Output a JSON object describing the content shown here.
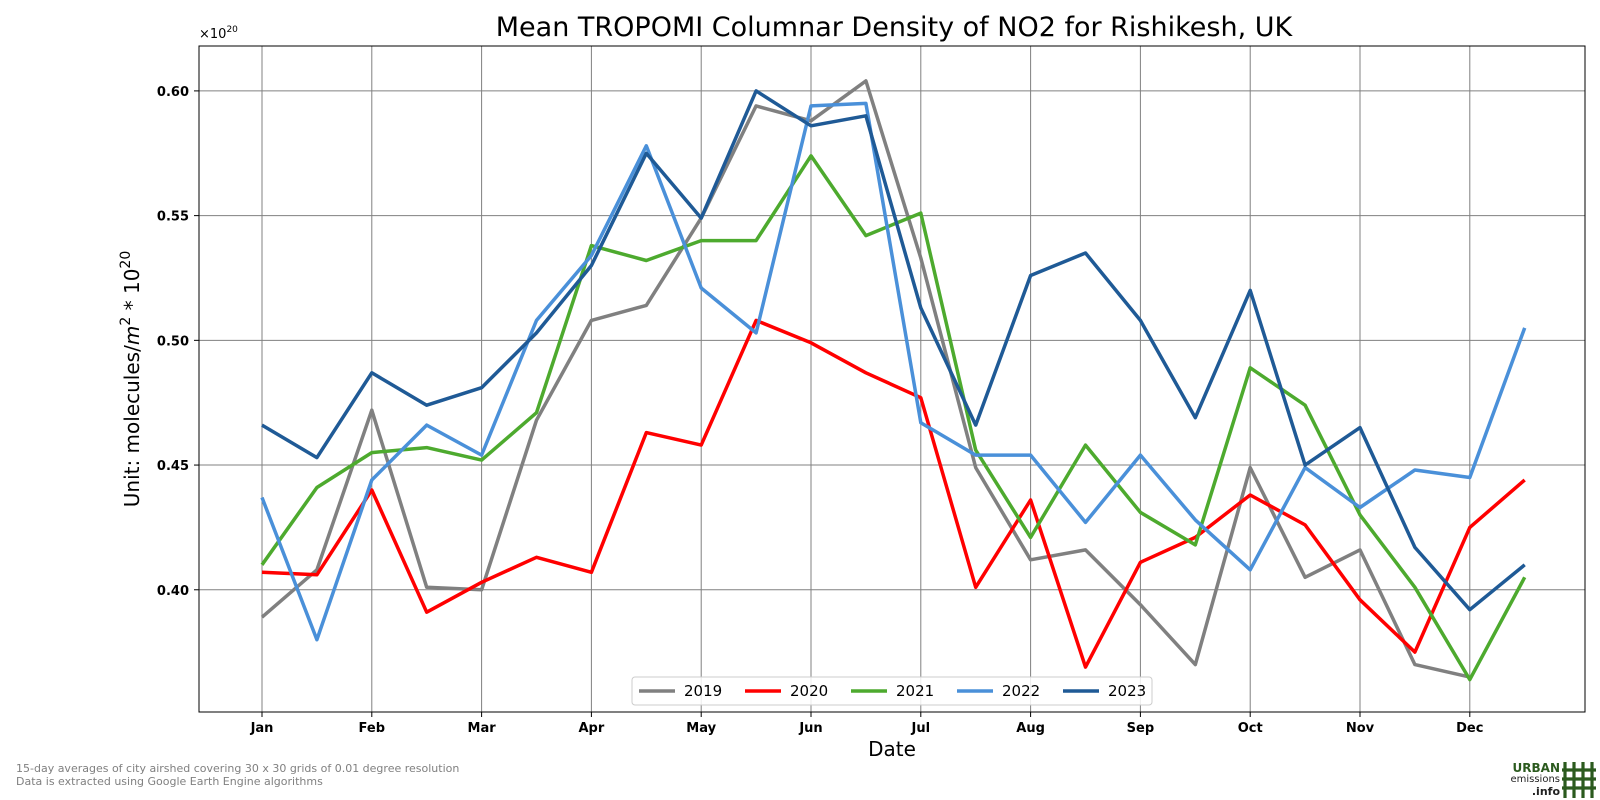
{
  "chart_data": {
    "type": "line",
    "title": "Mean TROPOMI Columnar Density of NO2 for Rishikesh, UK",
    "xlabel": "Date",
    "ylabel_prefix": "Unit: molecules/",
    "ylabel_unit_base": "m",
    "ylabel_unit_exp": "2",
    "ylabel_mult": " * 10",
    "ylabel_mult_exp": "20",
    "offset_base": "×10",
    "offset_exp": "20",
    "categories": [
      "Jan",
      "",
      "Feb",
      "",
      "Mar",
      "",
      "Apr",
      "",
      "May",
      "",
      "Jun",
      "",
      "Jul",
      "",
      "Aug",
      "",
      "Sep",
      "",
      "Oct",
      "",
      "Nov",
      "",
      "Dec",
      ""
    ],
    "month_ticks": [
      "Jan",
      "Feb",
      "Mar",
      "Apr",
      "May",
      "Jun",
      "Jul",
      "Aug",
      "Sep",
      "Oct",
      "Nov",
      "Dec"
    ],
    "yticks": [
      "0.40",
      "0.45",
      "0.50",
      "0.55",
      "0.60"
    ],
    "ylim": [
      0.351,
      0.618
    ],
    "grid": true,
    "legend_position": "bottom-center",
    "series": [
      {
        "name": "2019",
        "color": "#808080",
        "values": [
          0.389,
          0.408,
          0.472,
          0.401,
          0.4,
          0.468,
          0.508,
          0.514,
          0.549,
          0.594,
          0.588,
          0.604,
          0.533,
          0.449,
          0.412,
          0.416,
          0.394,
          0.37,
          0.449,
          0.405,
          0.416,
          0.37,
          0.365,
          null
        ]
      },
      {
        "name": "2020",
        "color": "#ff0000",
        "values": [
          0.407,
          0.406,
          0.44,
          0.391,
          0.403,
          0.413,
          0.407,
          0.463,
          0.458,
          0.508,
          0.499,
          0.487,
          0.477,
          0.401,
          0.436,
          0.369,
          0.411,
          0.421,
          0.438,
          0.426,
          0.396,
          0.375,
          0.425,
          0.444
        ]
      },
      {
        "name": "2021",
        "color": "#4daa2e",
        "values": [
          0.41,
          0.441,
          0.455,
          0.457,
          0.452,
          0.471,
          0.538,
          0.532,
          0.54,
          0.54,
          0.574,
          0.542,
          0.551,
          0.456,
          0.421,
          0.458,
          0.431,
          0.418,
          0.489,
          0.474,
          0.43,
          0.401,
          0.364,
          0.405
        ]
      },
      {
        "name": "2022",
        "color": "#4a90d9",
        "values": [
          0.437,
          0.38,
          0.444,
          0.466,
          0.454,
          0.508,
          0.534,
          0.578,
          0.521,
          0.503,
          0.594,
          0.595,
          0.467,
          0.454,
          0.454,
          0.427,
          0.454,
          0.428,
          0.408,
          0.449,
          0.433,
          0.448,
          0.445,
          0.505
        ]
      },
      {
        "name": "2023",
        "color": "#1f5a96",
        "values": [
          0.466,
          0.453,
          0.487,
          0.474,
          0.481,
          0.503,
          0.53,
          0.575,
          0.549,
          0.6,
          0.586,
          0.59,
          0.513,
          0.466,
          0.526,
          0.535,
          0.508,
          0.469,
          0.52,
          0.45,
          0.465,
          0.417,
          0.392,
          0.41
        ]
      }
    ]
  },
  "footer": {
    "line1": "15-day averages of city airshed covering 30 x 30 grids of 0.01 degree resolution",
    "line2": "Data is extracted using Google Earth Engine algorithms"
  },
  "logo": {
    "line1": "URBAN",
    "line2": "emissions",
    "line3": ".info",
    "color": "#2b5a1e"
  }
}
